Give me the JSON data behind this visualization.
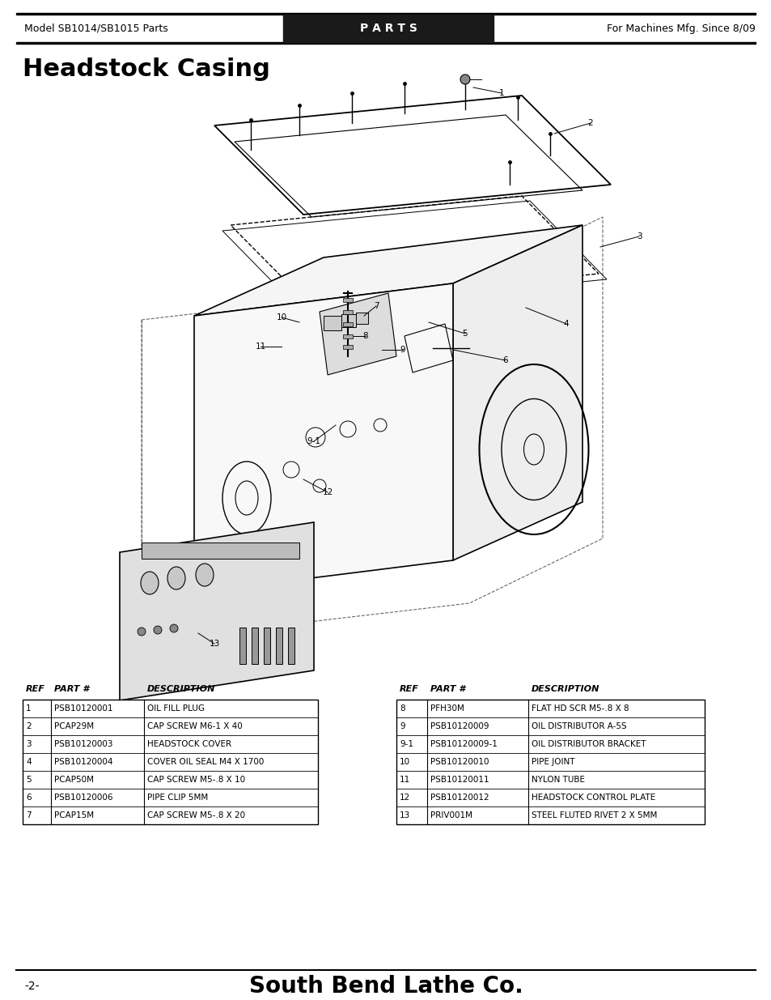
{
  "header_left": "Model SB1014/SB1015 Parts",
  "header_center": "P A R T S",
  "header_right": "For Machines Mfg. Since 8/09",
  "title": "Headstock Casing",
  "footer_left": "-2-",
  "footer_right": "South Bend Lathe Co.",
  "table_headers": [
    "REF",
    "PART #",
    "DESCRIPTION"
  ],
  "table_left": [
    [
      "1",
      "PSB10120001",
      "OIL FILL PLUG"
    ],
    [
      "2",
      "PCAP29M",
      "CAP SCREW M6-1 X 40"
    ],
    [
      "3",
      "PSB10120003",
      "HEADSTOCK COVER"
    ],
    [
      "4",
      "PSB10120004",
      "COVER OIL SEAL M4 X 1700"
    ],
    [
      "5",
      "PCAP50M",
      "CAP SCREW M5-.8 X 10"
    ],
    [
      "6",
      "PSB10120006",
      "PIPE CLIP 5MM"
    ],
    [
      "7",
      "PCAP15M",
      "CAP SCREW M5-.8 X 20"
    ]
  ],
  "table_right": [
    [
      "8",
      "PFH30M",
      "FLAT HD SCR M5-.8 X 8"
    ],
    [
      "9",
      "PSB10120009",
      "OIL DISTRIBUTOR A-5S"
    ],
    [
      "9-1",
      "PSB10120009-1",
      "OIL DISTRIBUTOR BRACKET"
    ],
    [
      "10",
      "PSB10120010",
      "PIPE JOINT"
    ],
    [
      "11",
      "PSB10120011",
      "NYLON TUBE"
    ],
    [
      "12",
      "PSB10120012",
      "HEADSTOCK CONTROL PLATE"
    ],
    [
      "13",
      "PRIV001M",
      "STEEL FLUTED RIVET 2 X 5MM"
    ]
  ],
  "bg_color": "#ffffff",
  "header_bg": "#1a1a1a",
  "header_fg": "#ffffff",
  "table_border_color": "#000000",
  "line_color": "#000000"
}
